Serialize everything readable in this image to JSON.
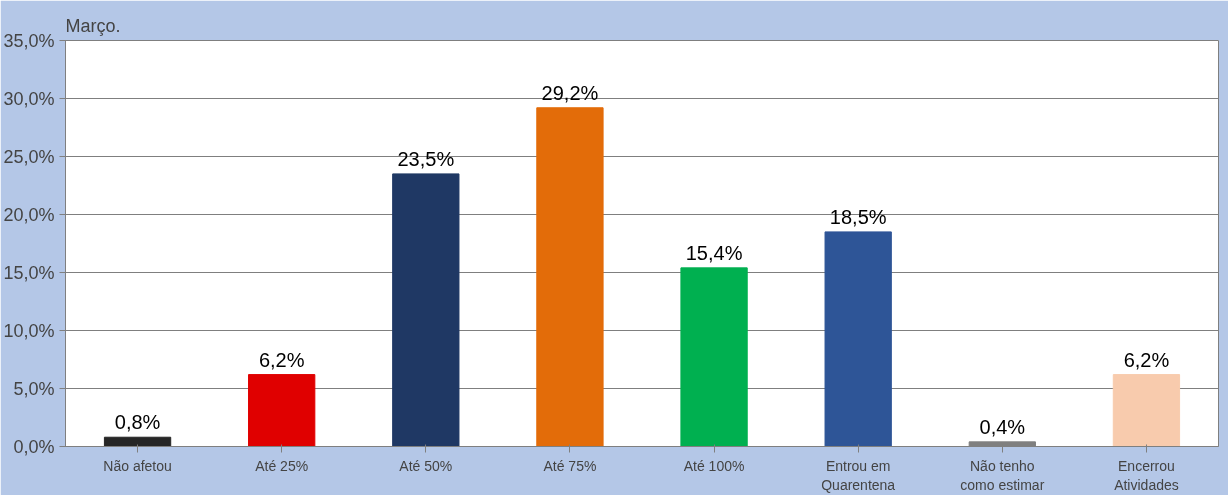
{
  "chart_data": {
    "type": "bar",
    "title": "Março.",
    "categories": [
      "Não afetou",
      "Até 25%",
      "Até 50%",
      "Até 75%",
      "Até 100%",
      "Entrou em\nQuarentena",
      "Não tenho\ncomo estimar",
      "Encerrou\nAtividades"
    ],
    "values": [
      0.8,
      6.2,
      23.5,
      29.2,
      15.4,
      18.5,
      0.4,
      6.2
    ],
    "colors": [
      "#262626",
      "#e00000",
      "#1f3864",
      "#e36c09",
      "#00b050",
      "#2e5597",
      "#7f7f7f",
      "#f8cbad"
    ],
    "value_labels": [
      "0,8%",
      "6,2%",
      "23,5%",
      "29,2%",
      "15,4%",
      "18,5%",
      "0,4%",
      "6,2%"
    ],
    "ylim": [
      0,
      35
    ],
    "yticks": [
      {
        "value": 0,
        "label": "0,0%"
      },
      {
        "value": 5,
        "label": "5,0%"
      },
      {
        "value": 10,
        "label": "10,0%"
      },
      {
        "value": 15,
        "label": "15,0%"
      },
      {
        "value": 20,
        "label": "20,0%"
      },
      {
        "value": 25,
        "label": "25,0%"
      },
      {
        "value": 30,
        "label": "30,0%"
      },
      {
        "value": 35,
        "label": "35,0%"
      }
    ],
    "grid": "y"
  }
}
